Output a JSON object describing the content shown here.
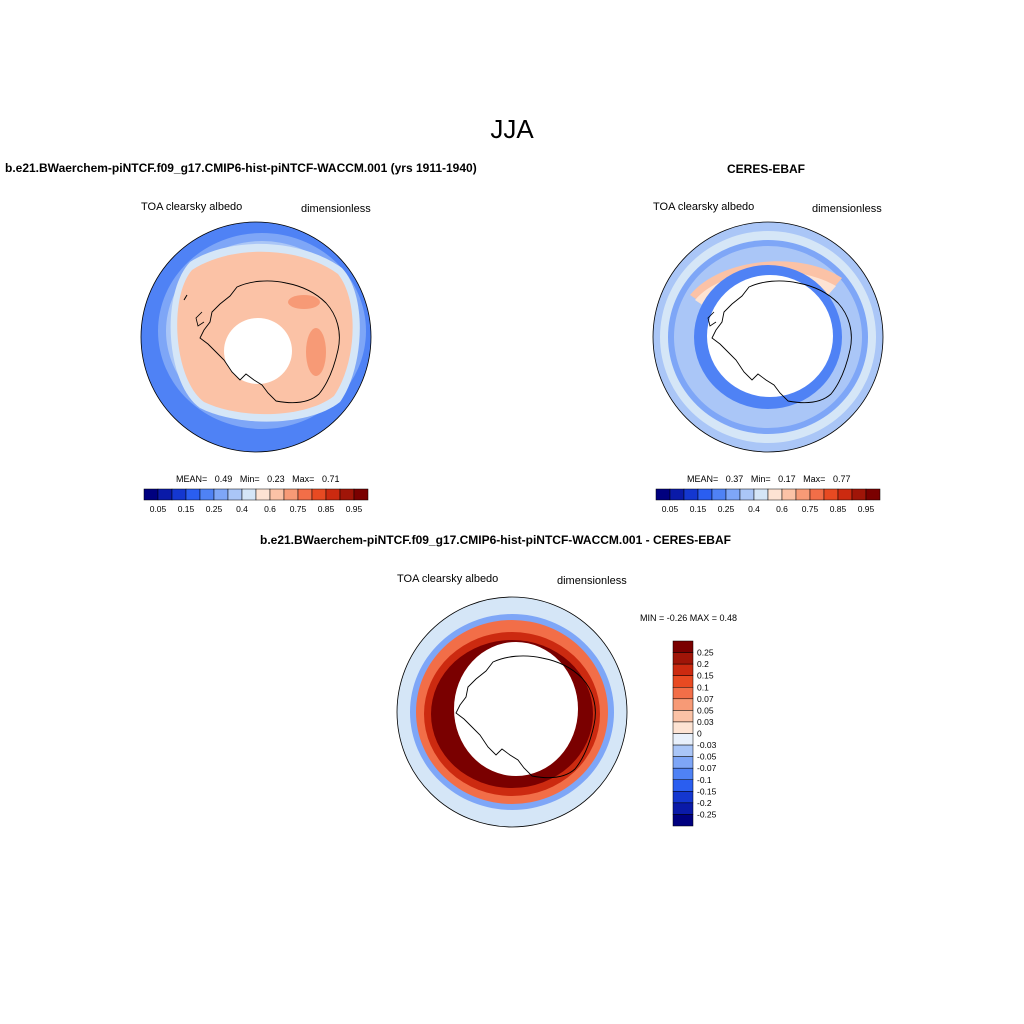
{
  "main_title": "JJA",
  "panel_model": {
    "title": "b.e21.BWaerchem-piNTCF.f09_g17.CMIP6-hist-piNTCF-WACCM.001 (yrs 1911-1940)",
    "left_label": "TOA clearsky albedo",
    "right_label": "dimensionless",
    "stats": {
      "mean_label": "MEAN=",
      "mean": "0.49",
      "min_label": "Min=",
      "min": "0.23",
      "max_label": "Max=",
      "max": "0.71"
    }
  },
  "panel_obs": {
    "title": "CERES-EBAF",
    "left_label": "TOA clearsky albedo",
    "right_label": "dimensionless",
    "stats": {
      "mean_label": "MEAN=",
      "mean": "0.37",
      "min_label": "Min=",
      "min": "0.17",
      "max_label": "Max=",
      "max": "0.77"
    }
  },
  "panel_diff": {
    "title": "b.e21.BWaerchem-piNTCF.f09_g17.CMIP6-hist-piNTCF-WACCM.001 - CERES-EBAF",
    "left_label": "TOA clearsky albedo",
    "right_label": "dimensionless",
    "minmax": "MIN =  -0.26 MAX =   0.48"
  },
  "abs_colorbar": {
    "colors": [
      "#00007f",
      "#0a1aa8",
      "#1437d0",
      "#2a5ef0",
      "#4f82f5",
      "#7ea6f7",
      "#aac6f7",
      "#d5e6f7",
      "#fde3d3",
      "#fbc2a6",
      "#f79a76",
      "#f26e48",
      "#e84a22",
      "#cc2a10",
      "#a01508",
      "#7a0000"
    ],
    "ticks": [
      "0.05",
      "0.15",
      "0.25",
      "0.4",
      "0.6",
      "0.75",
      "0.85",
      "0.95"
    ]
  },
  "diff_colorbar": {
    "colors": [
      "#7a0000",
      "#a01508",
      "#cc2a10",
      "#e84a22",
      "#f26e48",
      "#f79a76",
      "#fbc2a6",
      "#fde3d3",
      "#e8f0fb",
      "#aac6f7",
      "#7ea6f7",
      "#4f82f5",
      "#2a5ef0",
      "#1437d0",
      "#0a1aa8",
      "#00007f"
    ],
    "ticks": [
      "0.25",
      "0.2",
      "0.15",
      "0.1",
      "0.07",
      "0.05",
      "0.03",
      "0",
      "-0.03",
      "-0.05",
      "-0.07",
      "-0.1",
      "-0.15",
      "-0.2",
      "-0.25"
    ]
  }
}
